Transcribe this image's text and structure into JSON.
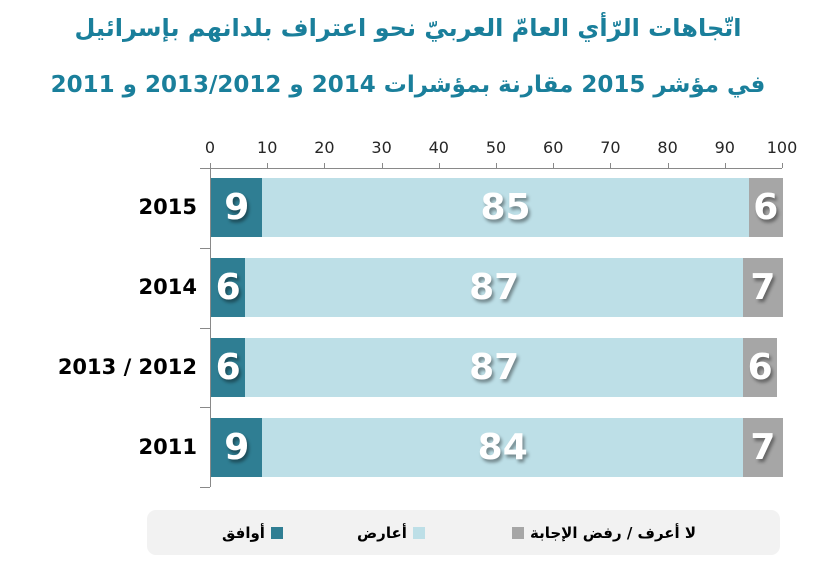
{
  "title": {
    "line1": "اتّجاهات الرّأي العامّ العربيّ نحو اعتراف بلدانهم بإسرائيل",
    "line2": "في مؤشر 2015 مقارنة بمؤشرات 2014 و 2013/2012 و 2011"
  },
  "colors": {
    "title": "#1A7F9B",
    "agree": "#2F7E93",
    "oppose": "#BDDFE7",
    "dont_know": "#A6A6A6",
    "axis": "#898989",
    "tick_label": "#262626",
    "legend_bg": "#F2F2F2",
    "bar_label": "#FFFFFF"
  },
  "chart_data": {
    "type": "bar",
    "orientation": "horizontal",
    "stacked": true,
    "title": "اتّجاهات الرّأي العامّ العربيّ نحو اعتراف بلدانهم بإسرائيل في مؤشر 2015 مقارنة بمؤشرات 2014 و 2013/2012 و 2011",
    "categories": [
      "2015",
      "2014",
      "2013 /  2012",
      "2011"
    ],
    "series": [
      {
        "name": "أوافق",
        "color_key": "agree",
        "values": [
          9,
          6,
          6,
          9
        ]
      },
      {
        "name": "أعارض",
        "color_key": "oppose",
        "values": [
          85,
          87,
          87,
          84
        ]
      },
      {
        "name": "لا أعرف /  رفض الإجابة",
        "color_key": "dont_know",
        "values": [
          6,
          7,
          6,
          7
        ]
      }
    ],
    "x_axis": {
      "min": 0,
      "max": 100,
      "tick_interval": 10,
      "tick_labels": [
        "0",
        "10",
        "20",
        "30",
        "40",
        "50",
        "60",
        "70",
        "80",
        "90",
        "100"
      ]
    },
    "grid": false,
    "legend_position": "bottom",
    "value_labels": "inside-center"
  }
}
